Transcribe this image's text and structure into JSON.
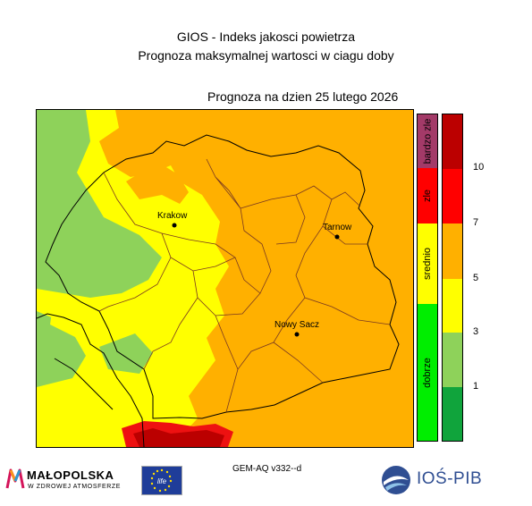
{
  "header": {
    "line1": "GIOS - Indeks jakosci powietrza",
    "line2": "Prognoza maksymalnej wartosci w ciagu doby",
    "date": "Prognoza na dzien  25 lutego 2026"
  },
  "map": {
    "cities": [
      {
        "name": "Krakow"
      },
      {
        "name": "Tarnow"
      },
      {
        "name": "Nowy Sacz"
      }
    ]
  },
  "legend": {
    "categories": [
      {
        "label": "bardzo zle",
        "color": "#a33a68"
      },
      {
        "label": "zle",
        "color": "#ff0000"
      },
      {
        "label": "srednio",
        "color": "#ffff00"
      },
      {
        "label": "dobrze",
        "color": "#00ee00"
      }
    ],
    "scale_colors": [
      "#bb0000",
      "#ff0000",
      "#ffb000",
      "#ffff00",
      "#8ed25a",
      "#10a43c"
    ],
    "ticks": [
      "10",
      "7",
      "5",
      "3",
      "1"
    ]
  },
  "footer": {
    "model": "GEM-AQ v332--d",
    "malopolska_title": "MAŁOPOLSKA",
    "malopolska_sub": "W ZDROWEJ ATMOSFERZE",
    "eu_life": "life",
    "ios_name": "IOŚ-PIB"
  }
}
